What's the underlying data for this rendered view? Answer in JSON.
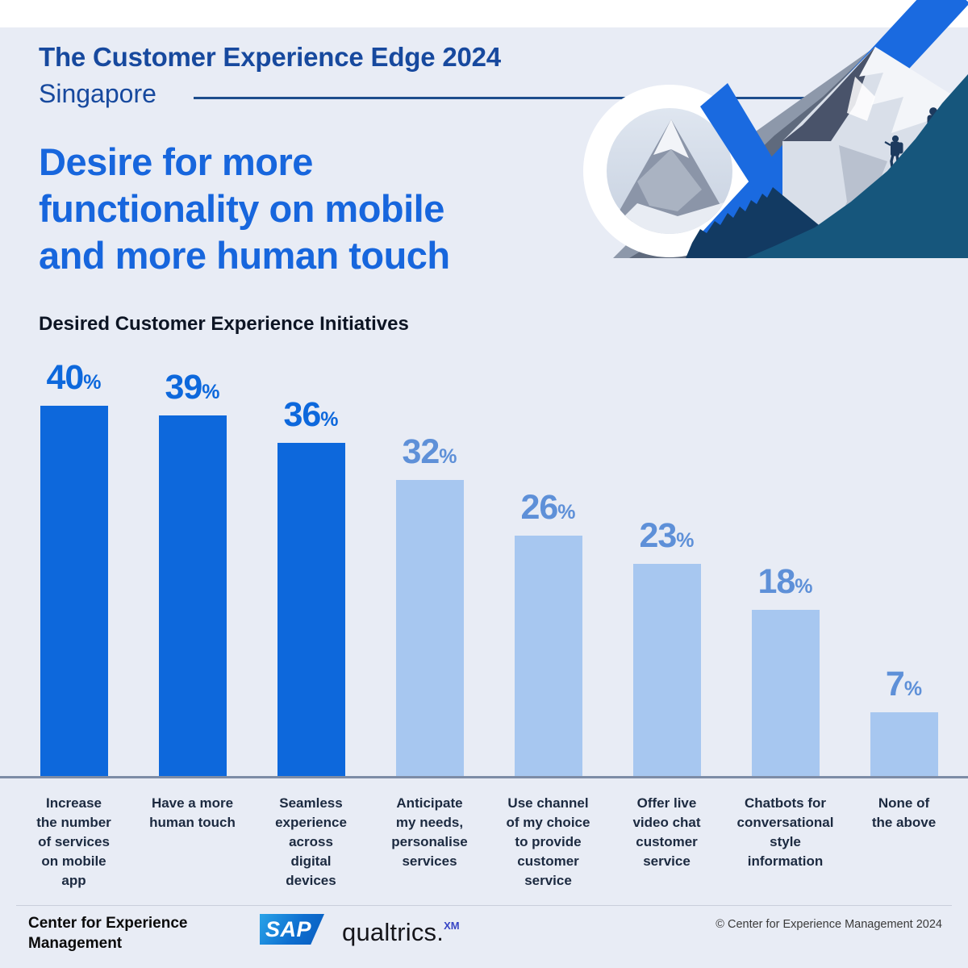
{
  "header": {
    "report_title": "The Customer Experience Edge 2024",
    "region": "Singapore",
    "headline": "Desire for more\nfunctionality on mobile\nand more human touch"
  },
  "chart": {
    "title": "Desired Customer Experience Initiatives"
  },
  "chart_data": {
    "type": "bar",
    "title": "Desired Customer Experience Initiatives",
    "categories": [
      "Increase\nthe number\nof services\non mobile\napp",
      "Have a more\nhuman touch",
      "Seamless\nexperience\nacross\ndigital\ndevices",
      "Anticipate\nmy needs,\npersonalise\nservices",
      "Use channel\nof my choice\nto provide\ncustomer\nservice",
      "Offer live\nvideo chat\ncustomer\nservice",
      "Chatbots for\nconversational\nstyle\ninformation",
      "None of\nthe above"
    ],
    "values": [
      40,
      39,
      36,
      32,
      26,
      23,
      18,
      7
    ],
    "value_suffix": "%",
    "emphasis": [
      "dark",
      "dark",
      "dark",
      "light",
      "light",
      "light",
      "light",
      "light"
    ],
    "palette": {
      "dark_bar": "#0d68dc",
      "light_bar": "#a7c7f0",
      "dark_label": "#0d68dc",
      "light_label": "#5e90d8",
      "baseline": "#7d8ca6"
    },
    "ylim": [
      0,
      46
    ],
    "grid": "off",
    "value_labels": "above bars",
    "xlabel": "",
    "ylabel": ""
  },
  "footer": {
    "org": "Center for Experience\nManagement",
    "sap_logo_text": "SAP",
    "qualtrics_logo_text": "qualtrics",
    "qualtrics_dot": ".",
    "qualtrics_sup": "XM",
    "copyright": "© Center for Experience Management 2024"
  }
}
